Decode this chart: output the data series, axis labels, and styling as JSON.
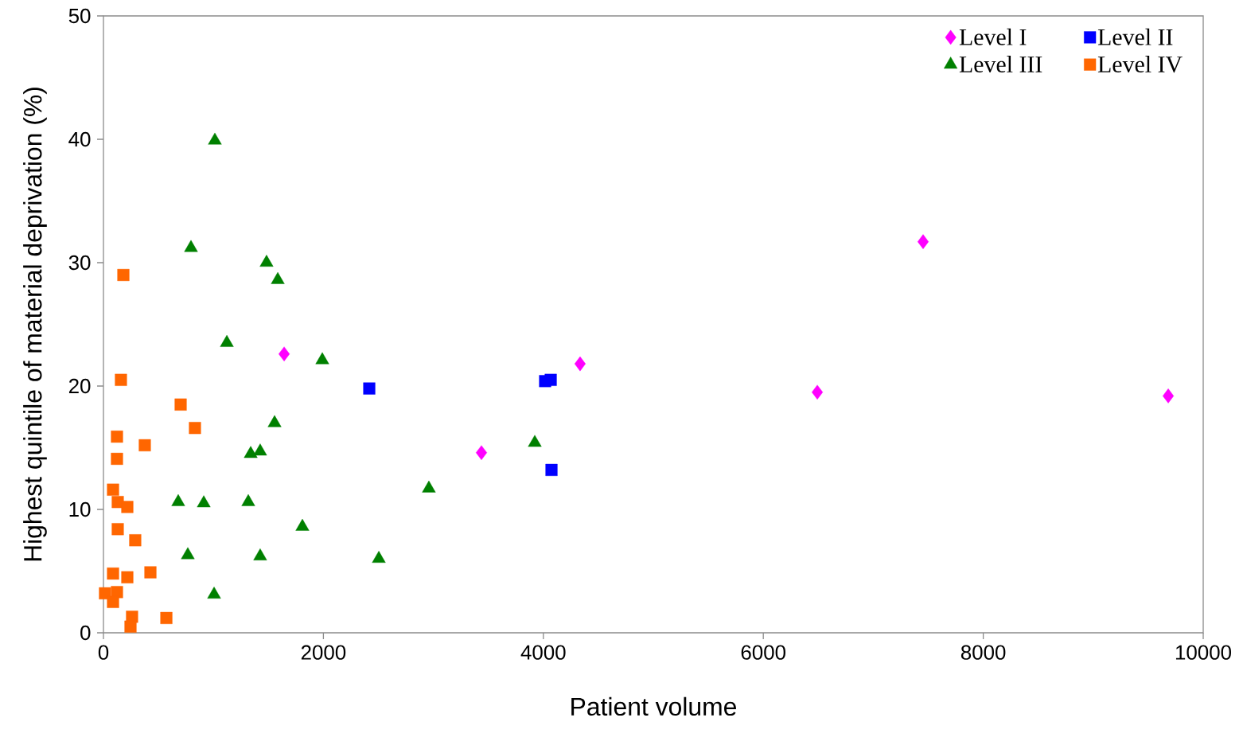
{
  "chart_data": {
    "type": "scatter",
    "xlabel": "Patient volume",
    "ylabel": "Highest quintile of material deprivation (%)",
    "xlim": [
      0,
      10000
    ],
    "xticks": [
      0,
      2000,
      4000,
      6000,
      8000,
      10000
    ],
    "ylim": [
      0,
      50
    ],
    "yticks": [
      0,
      10,
      20,
      30,
      40,
      50
    ],
    "grid": false,
    "legend": "top right",
    "series": [
      {
        "name": "Level I",
        "color": "#ff00ff",
        "marker": "diamond",
        "x": [
          1643,
          3437,
          4334,
          6491,
          7453,
          9682
        ],
        "values": [
          22.6,
          14.6,
          21.8,
          19.5,
          31.7,
          19.2
        ]
      },
      {
        "name": "Level II",
        "color": "#0000ff",
        "marker": "square",
        "x": [
          2417,
          4016,
          4067,
          4074
        ],
        "values": [
          19.8,
          20.4,
          20.5,
          13.2
        ]
      },
      {
        "name": "Level III",
        "color": "#008000",
        "marker": "triangle",
        "x": [
          1013,
          796,
          1483,
          1585,
          1122,
          1990,
          1556,
          1339,
          1425,
          3922,
          2959,
          680,
          912,
          1317,
          1809,
          767,
          1425,
          2504,
          1006
        ],
        "values": [
          39.9,
          31.2,
          30.0,
          28.6,
          23.5,
          22.1,
          17.0,
          14.5,
          14.7,
          15.4,
          11.7,
          10.6,
          10.5,
          10.6,
          8.6,
          6.3,
          6.2,
          6.0,
          3.1
        ]
      },
      {
        "name": "Level IV",
        "color": "#ff6600",
        "marker": "square",
        "x": [
          181,
          159,
          702,
          832,
          123,
          376,
          123,
          87,
          130,
          217,
          130,
          289,
          87,
          217,
          427,
          14,
          123,
          87,
          260,
          246,
          572
        ],
        "values": [
          29.0,
          20.5,
          18.5,
          16.6,
          15.9,
          15.2,
          14.1,
          11.6,
          10.6,
          10.2,
          8.4,
          7.5,
          4.8,
          4.5,
          4.9,
          3.2,
          3.3,
          2.5,
          1.3,
          0.5,
          1.2
        ]
      }
    ]
  }
}
